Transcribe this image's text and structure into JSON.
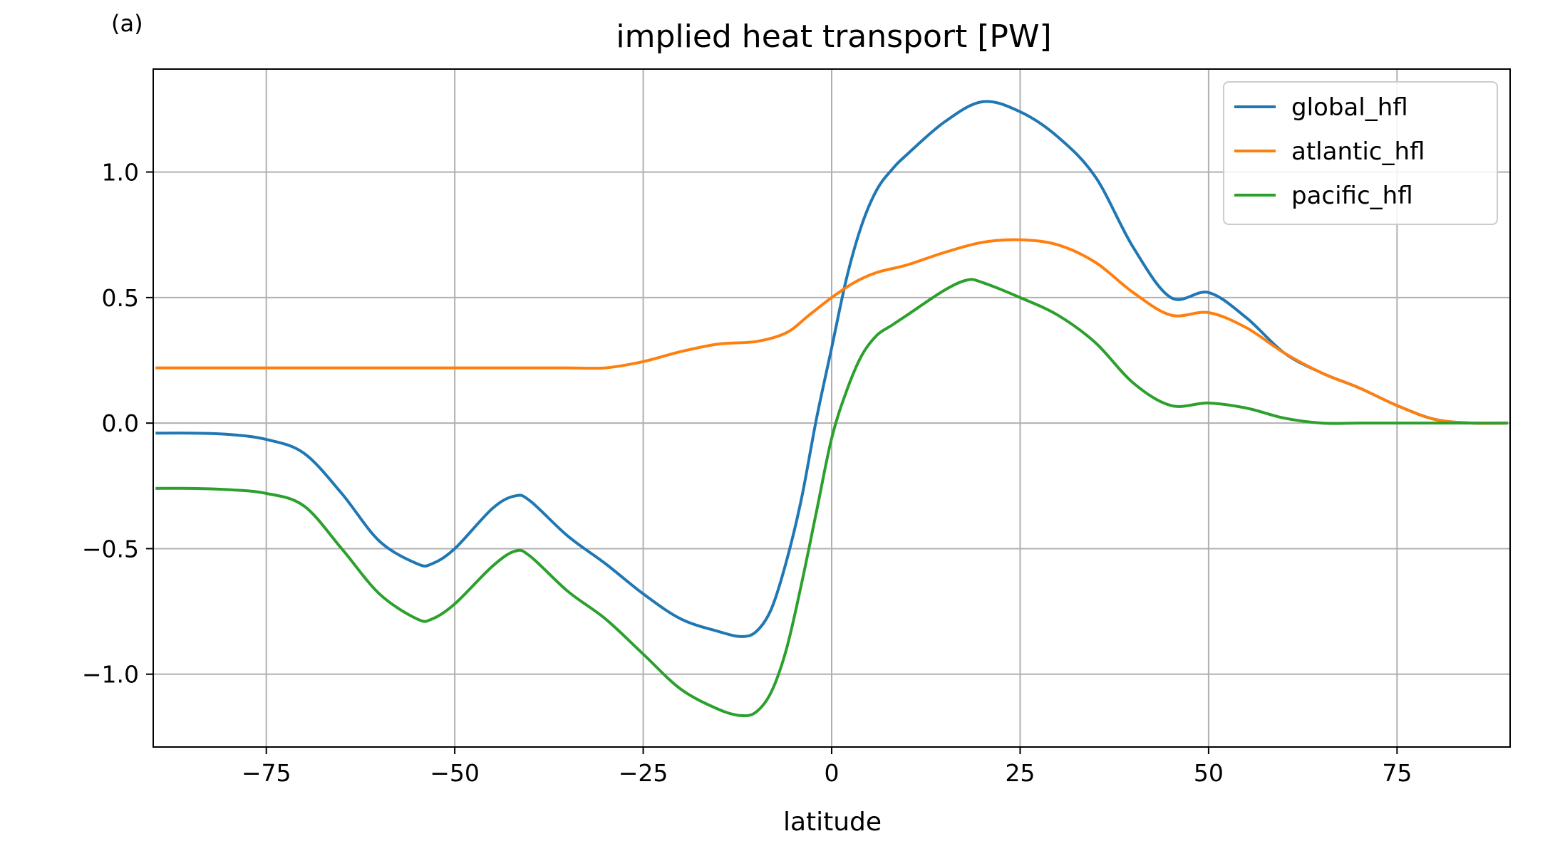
{
  "chart_data": {
    "type": "line",
    "panel_label": "(a)",
    "title": "implied heat transport [PW]",
    "xlabel": "latitude",
    "ylabel": "",
    "xlim": [
      -90,
      90
    ],
    "ylim": [
      -1.29,
      1.41
    ],
    "xticks": [
      -75,
      -50,
      -25,
      0,
      25,
      50,
      75
    ],
    "xtick_labels": [
      "−75",
      "−50",
      "−25",
      "0",
      "25",
      "50",
      "75"
    ],
    "yticks": [
      -1.0,
      -0.5,
      0.0,
      0.5,
      1.0
    ],
    "ytick_labels": [
      "−1.0",
      "−0.5",
      "0.0",
      "0.5",
      "1.0"
    ],
    "grid": true,
    "legend_position": "top-right",
    "series": [
      {
        "name": "global_hfl",
        "color": "#1f77b4",
        "x": [
          -89.5,
          -85,
          -80,
          -75,
          -70,
          -65,
          -60,
          -55,
          -53,
          -50,
          -45,
          -42,
          -40,
          -35,
          -30,
          -25,
          -20,
          -15,
          -12,
          -10,
          -8,
          -6,
          -4,
          -2,
          0,
          2,
          4,
          6,
          8,
          10,
          15,
          20,
          25,
          30,
          35,
          40,
          45,
          50,
          55,
          60,
          65,
          70,
          75,
          80,
          85,
          89.5
        ],
        "y": [
          -0.04,
          -0.04,
          -0.045,
          -0.065,
          -0.12,
          -0.28,
          -0.47,
          -0.56,
          -0.56,
          -0.5,
          -0.34,
          -0.29,
          -0.31,
          -0.45,
          -0.56,
          -0.68,
          -0.78,
          -0.83,
          -0.85,
          -0.83,
          -0.74,
          -0.55,
          -0.3,
          0.02,
          0.3,
          0.58,
          0.79,
          0.93,
          1.01,
          1.07,
          1.2,
          1.28,
          1.24,
          1.14,
          0.98,
          0.7,
          0.5,
          0.52,
          0.42,
          0.28,
          0.2,
          0.14,
          0.07,
          0.015,
          0.0,
          0.0
        ]
      },
      {
        "name": "atlantic_hfl",
        "color": "#ff7f0e",
        "x": [
          -89.5,
          -85,
          -80,
          -75,
          -70,
          -65,
          -60,
          -55,
          -50,
          -45,
          -40,
          -35,
          -30,
          -25,
          -20,
          -15,
          -10,
          -6,
          -3,
          0,
          3,
          6,
          10,
          15,
          20,
          25,
          30,
          35,
          40,
          45,
          50,
          55,
          60,
          65,
          70,
          75,
          80,
          85,
          89.5
        ],
        "y": [
          0.22,
          0.22,
          0.22,
          0.22,
          0.22,
          0.22,
          0.22,
          0.22,
          0.22,
          0.22,
          0.22,
          0.22,
          0.22,
          0.245,
          0.285,
          0.315,
          0.325,
          0.36,
          0.43,
          0.5,
          0.56,
          0.6,
          0.63,
          0.68,
          0.72,
          0.73,
          0.71,
          0.64,
          0.52,
          0.43,
          0.44,
          0.38,
          0.28,
          0.2,
          0.14,
          0.07,
          0.015,
          0.0,
          0.0
        ]
      },
      {
        "name": "pacific_hfl",
        "color": "#2ca02c",
        "x": [
          -89.5,
          -85,
          -80,
          -75,
          -70,
          -65,
          -60,
          -55,
          -53,
          -50,
          -45,
          -42,
          -40,
          -35,
          -30,
          -25,
          -20,
          -15,
          -12,
          -10,
          -8,
          -6,
          -4,
          -2,
          0,
          2,
          4,
          6,
          8,
          10,
          15,
          18,
          20,
          25,
          30,
          35,
          40,
          45,
          50,
          55,
          60,
          65,
          70,
          75,
          80,
          85,
          89.5
        ],
        "y": [
          -0.26,
          -0.26,
          -0.265,
          -0.28,
          -0.33,
          -0.5,
          -0.68,
          -0.78,
          -0.78,
          -0.72,
          -0.57,
          -0.51,
          -0.53,
          -0.67,
          -0.78,
          -0.92,
          -1.06,
          -1.14,
          -1.165,
          -1.15,
          -1.07,
          -0.9,
          -0.64,
          -0.35,
          -0.06,
          0.13,
          0.27,
          0.35,
          0.39,
          0.43,
          0.53,
          0.57,
          0.56,
          0.5,
          0.43,
          0.32,
          0.16,
          0.07,
          0.08,
          0.06,
          0.02,
          0.0,
          0.0,
          0.0,
          0.0,
          0.0,
          0.0
        ]
      }
    ]
  }
}
